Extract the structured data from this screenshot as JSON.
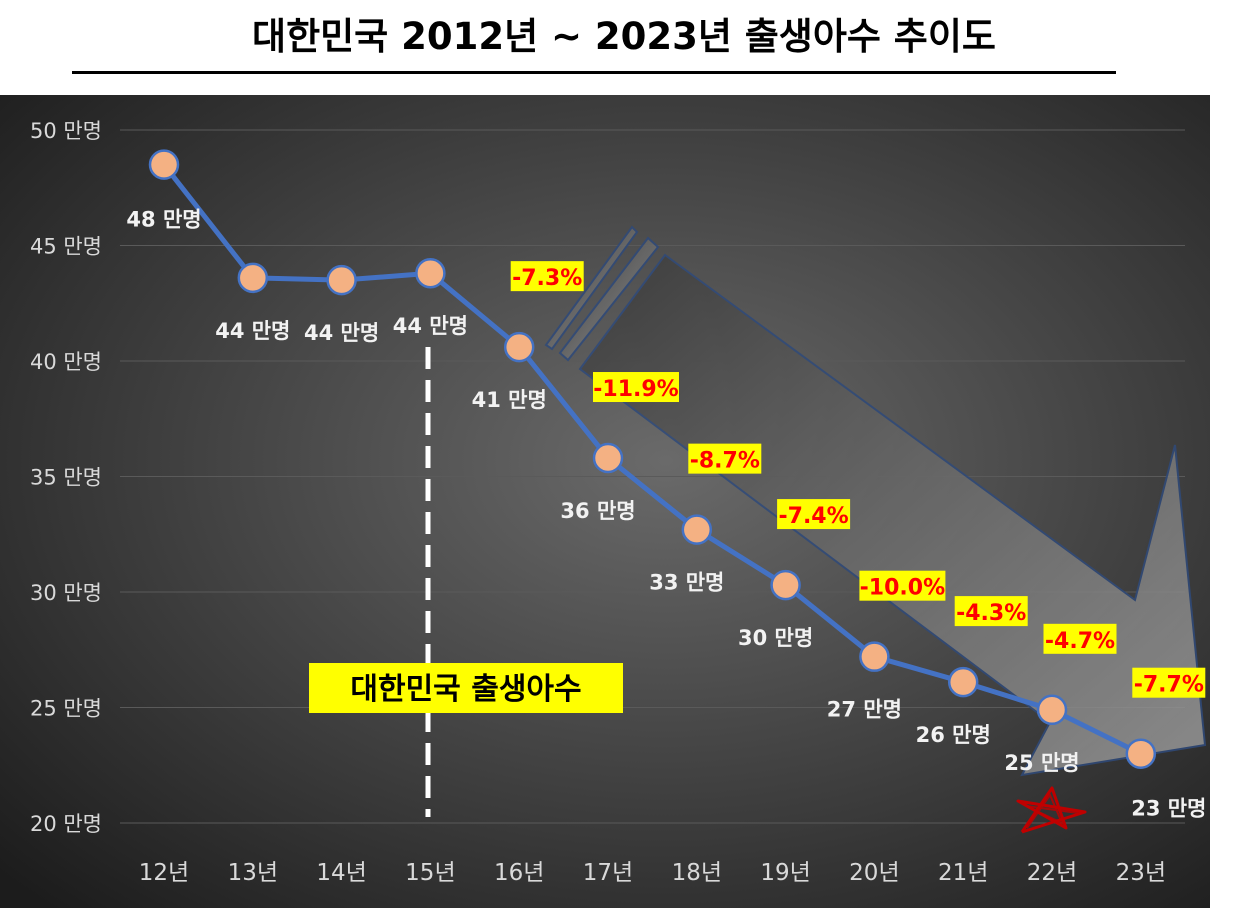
{
  "title": "대한민국 2012년 ~ 2023년 출생아수 추이도",
  "colors": {
    "background_center": "#6a6a6a",
    "background_edge": "#1c1c1c",
    "line": "#4472c4",
    "marker_fill": "#f4b183",
    "marker_stroke": "#4472c4",
    "label_text": "#f2f2f2",
    "pct_text": "#ff0000",
    "pct_background": "#ffff00",
    "star": "#c00000"
  },
  "annotation": "대한민국 출생아수",
  "chart_data": {
    "type": "line",
    "title": "대한민국 2012년 ~ 2023년 출생아수 추이도",
    "xlabel": "",
    "ylabel": "",
    "ylim": [
      20,
      50
    ],
    "y_ticks": [
      50,
      45,
      40,
      35,
      30,
      25,
      20
    ],
    "y_tick_labels": [
      "50 만명",
      "45 만명",
      "40 만명",
      "35 만명",
      "30 만명",
      "25 만명",
      "20 만명"
    ],
    "categories": [
      "12년",
      "13년",
      "14년",
      "15년",
      "16년",
      "17년",
      "18년",
      "19년",
      "20년",
      "21년",
      "22년",
      "23년"
    ],
    "values": [
      48.5,
      43.6,
      43.5,
      43.8,
      40.6,
      35.8,
      32.7,
      30.3,
      27.2,
      26.1,
      24.9,
      23.0
    ],
    "data_labels": [
      "48 만명",
      "44 만명",
      "44 만명",
      "44 만명",
      "41 만명",
      "36 만명",
      "33 만명",
      "30 만명",
      "27 만명",
      "26 만명",
      "25 만명",
      "23 만명"
    ],
    "pct_changes": [
      "",
      "",
      "",
      "",
      "-7.3%",
      "-11.9%",
      "-8.7%",
      "-7.4%",
      "-10.0%",
      "-4.3%",
      "-4.7%",
      "-7.7%"
    ],
    "grid": true,
    "legend": "none"
  }
}
